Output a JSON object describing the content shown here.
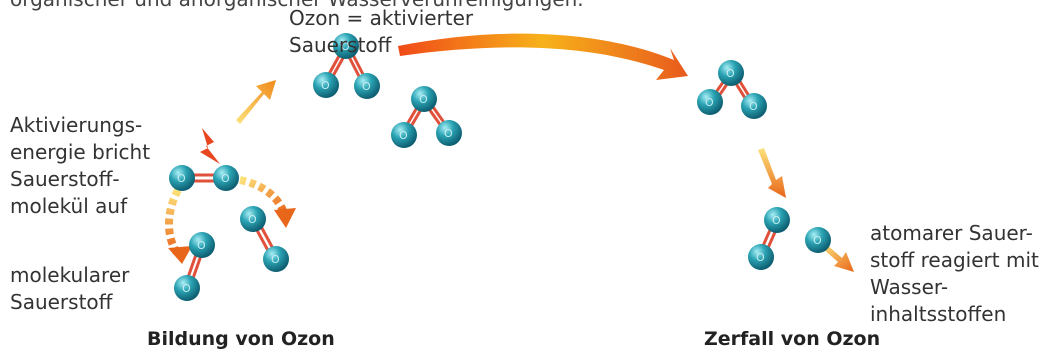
{
  "top_line_cut": "organischer und anorganischer Wasserverunreinigungen.",
  "labels": {
    "ozone": "Ozon = aktivierter\nSauerstoff",
    "activation": "Aktivierungs-\nenergie bricht\nSauerstoff-\nmolekül auf",
    "molecular": "molekularer\nSauerstoff",
    "atomic": "atomarer Sauer-\nstoff reagiert mit\nWasser-\ninhaltsstoffen"
  },
  "headings": {
    "formation": "Bildung von Ozon",
    "decay": "Zerfall von Ozon"
  },
  "atom_symbol": "O",
  "colors": {
    "atom": "#1f8fa0",
    "atom_highlight": "#8fe3ec",
    "bond": "#e0503a",
    "arrow_start": "#fff0a0",
    "arrow_mid": "#f7b21a",
    "arrow_end": "#e85a1c",
    "lightning": "#e8461e"
  },
  "icons": [
    "lightning-icon",
    "arrow-icon"
  ]
}
